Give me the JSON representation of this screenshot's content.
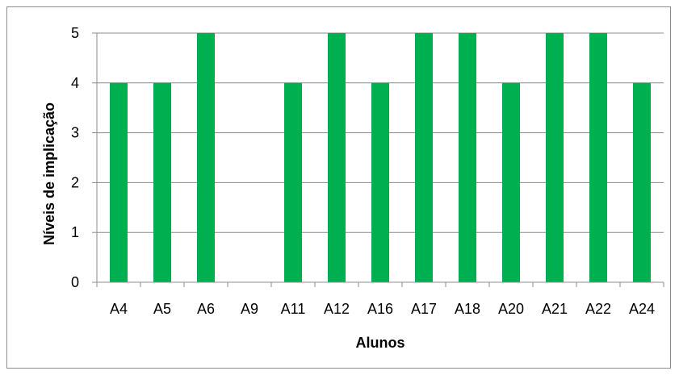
{
  "chart_data": {
    "type": "bar",
    "xlabel": "Alunos",
    "ylabel": "Níveis de implicação",
    "categories": [
      "A4",
      "A5",
      "A6",
      "A9",
      "A11",
      "A12",
      "A16",
      "A17",
      "A18",
      "A20",
      "A21",
      "A22",
      "A24"
    ],
    "values": [
      4,
      4,
      5,
      0,
      4,
      5,
      4,
      5,
      5,
      4,
      5,
      5,
      4
    ],
    "ylim": [
      0,
      5
    ],
    "yticks": [
      0,
      1,
      2,
      3,
      4,
      5
    ],
    "grid": true,
    "legend": "none",
    "bar_color": "#00b050"
  }
}
